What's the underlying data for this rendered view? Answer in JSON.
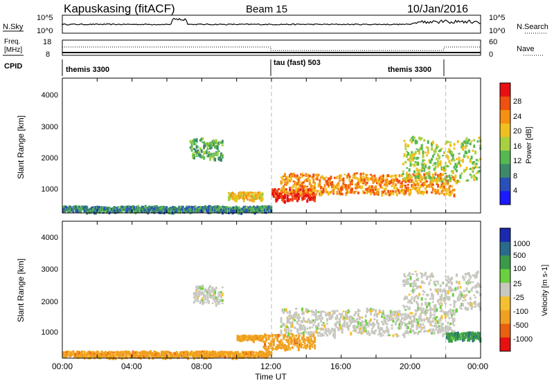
{
  "header": {
    "station": "Kapuskasing (fitACF)",
    "beam": "Beam 15",
    "date": "10/Jan/2016"
  },
  "noise_panel": {
    "left_label": "N.Sky",
    "right_label": "N.Search",
    "left_ticks": [
      "10^5",
      "10^0"
    ],
    "right_ticks": [
      "10^5",
      "10^0"
    ]
  },
  "freq_panel": {
    "left_label_line1": "Freq.",
    "left_label_line2": "[MHz]",
    "right_label": "Nave",
    "left_ticks": [
      "18",
      "8"
    ],
    "right_ticks": [
      "60",
      "0"
    ]
  },
  "cpid_panel": {
    "label": "CPID",
    "segments": [
      {
        "name": "themis 3300",
        "start_hour": 0,
        "end_hour": 12
      },
      {
        "name": "tau (fast) 503",
        "start_hour": 12,
        "end_hour": 22
      },
      {
        "name": "themis 3300",
        "start_hour": 22,
        "end_hour": 24
      }
    ]
  },
  "power_panel": {
    "ylabel": "Slant Range [km]",
    "yticks": [
      "4000",
      "3000",
      "2000",
      "1000"
    ],
    "colorbar_label": "Power [dB]",
    "colorbar_ticks": [
      "28",
      "24",
      "20",
      "16",
      "12",
      "8",
      "4"
    ],
    "colors": [
      "#1a1aff",
      "#2a4fb8",
      "#3d8a6a",
      "#56b850",
      "#a8d040",
      "#f0c020",
      "#f59010",
      "#f05010",
      "#e81010"
    ]
  },
  "velocity_panel": {
    "ylabel": "Slant Range [km]",
    "yticks": [
      "4000",
      "3000",
      "2000",
      "1000"
    ],
    "colorbar_label": "Velocity [m s-1]",
    "colorbar_ticks": [
      "1000",
      "500",
      "100",
      "25",
      "-25",
      "-100",
      "-500",
      "-1000"
    ],
    "colors": [
      "#1a2ab0",
      "#2a6a8a",
      "#3a9a4a",
      "#6ad040",
      "#c8c8c0",
      "#f5c030",
      "#f0a020",
      "#e86010",
      "#e81010"
    ]
  },
  "xaxis": {
    "label": "Time UT",
    "ticks": [
      "00:00",
      "04:00",
      "08:00",
      "12:00",
      "16:00",
      "20:00",
      "00:00"
    ]
  },
  "chart_data": {
    "type": "heatmap",
    "x_unit": "hours UT",
    "xlim": [
      0,
      24
    ],
    "ylim_km": [
      180,
      4500
    ],
    "power_features": [
      {
        "start_hour": 0,
        "end_hour": 12,
        "low_km": 180,
        "high_km": 400,
        "level_db": 8
      },
      {
        "start_hour": 7.3,
        "end_hour": 9.2,
        "low_km": 1800,
        "high_km": 2600,
        "level_db": 10
      },
      {
        "start_hour": 9.5,
        "end_hour": 11.5,
        "low_km": 550,
        "high_km": 850,
        "level_db": 18
      },
      {
        "start_hour": 12.0,
        "end_hour": 14.5,
        "low_km": 500,
        "high_km": 1000,
        "level_db": 26
      },
      {
        "start_hour": 12.5,
        "end_hour": 22.5,
        "low_km": 700,
        "high_km": 1500,
        "level_db": 20
      },
      {
        "start_hour": 19.5,
        "end_hour": 24,
        "low_km": 1000,
        "high_km": 2700,
        "level_db": 14
      }
    ],
    "velocity_features": [
      {
        "start_hour": 0,
        "end_hour": 12,
        "low_km": 180,
        "high_km": 400,
        "velocity": -60
      },
      {
        "start_hour": 7.5,
        "end_hour": 9.2,
        "low_km": 1800,
        "high_km": 2500,
        "velocity": 0
      },
      {
        "start_hour": 10.0,
        "end_hour": 11.5,
        "low_km": 700,
        "high_km": 900,
        "velocity": -150
      },
      {
        "start_hour": 11.5,
        "end_hour": 14.5,
        "low_km": 400,
        "high_km": 1000,
        "velocity": -200
      },
      {
        "start_hour": 12.5,
        "end_hour": 22.5,
        "low_km": 800,
        "high_km": 1800,
        "velocity": 0
      },
      {
        "start_hour": 19.5,
        "end_hour": 24,
        "low_km": 1500,
        "high_km": 3000,
        "velocity": 0
      },
      {
        "start_hour": 22,
        "end_hour": 24,
        "low_km": 700,
        "high_km": 1000,
        "velocity": 80
      }
    ]
  }
}
